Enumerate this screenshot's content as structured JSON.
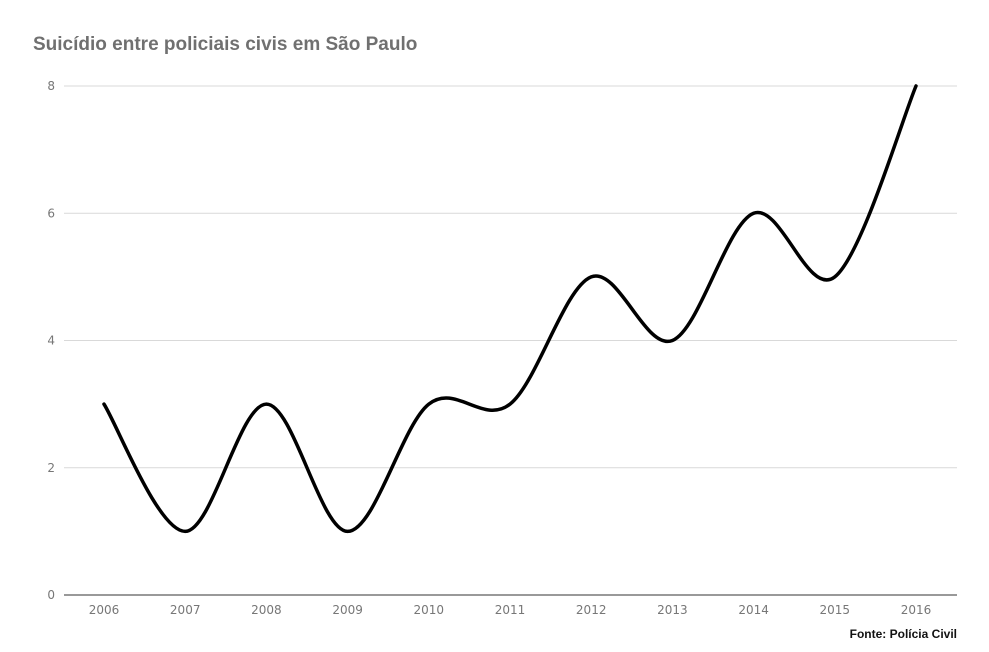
{
  "chart_data": {
    "type": "line",
    "title": "Suicídio entre policiais civis em São Paulo",
    "xlabel": "",
    "ylabel": "",
    "x": [
      "2006",
      "2007",
      "2008",
      "2009",
      "2010",
      "2011",
      "2012",
      "2013",
      "2014",
      "2015",
      "2016"
    ],
    "series": [
      {
        "values": [
          3,
          1,
          3,
          1,
          3,
          3,
          5,
          4,
          6,
          5,
          8
        ]
      }
    ],
    "ylim": [
      0,
      8
    ],
    "yticks": [
      0,
      2,
      4,
      6,
      8
    ],
    "grid": true,
    "legend": "none",
    "line_color": "#000000",
    "grid_color": "#d9d9d9",
    "source": "Fonte: Polícia Civil"
  }
}
